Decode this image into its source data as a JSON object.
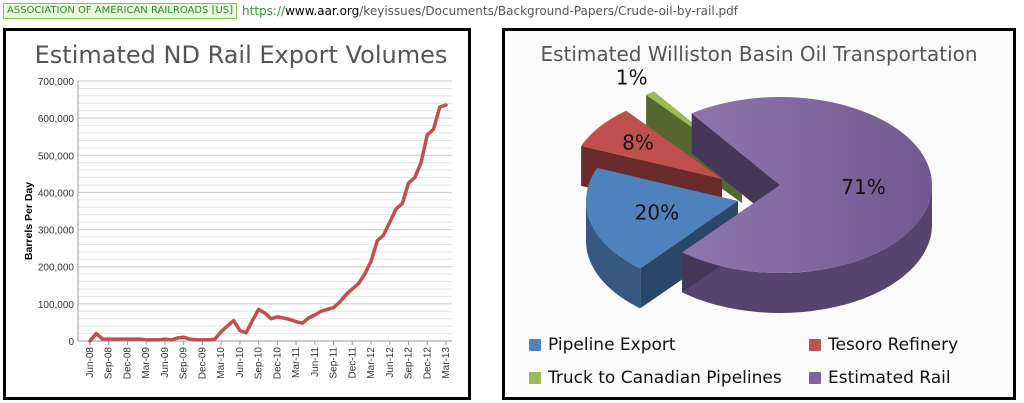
{
  "address_bar": {
    "site_badge": "ASSOCIATION OF AMERICAN RAILROADS [US]",
    "url_scheme": "https://",
    "url_host": "www.aar.org",
    "url_path": "/keyissues/Documents/Background-Papers/Crude-oil-by-rail.pdf",
    "secure_color": "#2a9d2a"
  },
  "chart_data": [
    {
      "type": "line",
      "title": "Estimated ND Rail Export Volumes",
      "xlabel": "",
      "ylabel": "Barrels Per Day",
      "ylim": [
        0,
        700000
      ],
      "yticks": [
        0,
        100000,
        200000,
        300000,
        400000,
        500000,
        600000,
        700000
      ],
      "ytick_labels": [
        "0",
        "100,000",
        "200,000",
        "300,000",
        "400,000",
        "500,000",
        "600,000",
        "700,000"
      ],
      "xtick_labels": [
        "Jun-08",
        "Sep-08",
        "Dec-08",
        "Mar-09",
        "Jun-09",
        "Sep-09",
        "Dec-09",
        "Mar-10",
        "Jun-10",
        "Sep-10",
        "Dec-10",
        "Mar-11",
        "Jun-11",
        "Sep-11",
        "Dec-11",
        "Mar-12",
        "Jun-12",
        "Sep-12",
        "Dec-12",
        "Mar-13"
      ],
      "grid": true,
      "line_color": "#c0504d",
      "x": [
        "Jun-08",
        "Jul-08",
        "Aug-08",
        "Sep-08",
        "Oct-08",
        "Nov-08",
        "Dec-08",
        "Jan-09",
        "Feb-09",
        "Mar-09",
        "Apr-09",
        "May-09",
        "Jun-09",
        "Jul-09",
        "Aug-09",
        "Sep-09",
        "Oct-09",
        "Nov-09",
        "Dec-09",
        "Jan-10",
        "Feb-10",
        "Mar-10",
        "Apr-10",
        "May-10",
        "Jun-10",
        "Jul-10",
        "Aug-10",
        "Sep-10",
        "Oct-10",
        "Nov-10",
        "Dec-10",
        "Jan-11",
        "Feb-11",
        "Mar-11",
        "Apr-11",
        "May-11",
        "Jun-11",
        "Jul-11",
        "Aug-11",
        "Sep-11",
        "Oct-11",
        "Nov-11",
        "Dec-11",
        "Jan-12",
        "Feb-12",
        "Mar-12",
        "Apr-12",
        "May-12",
        "Jun-12",
        "Jul-12",
        "Aug-12",
        "Sep-12",
        "Oct-12",
        "Nov-12",
        "Dec-12",
        "Jan-13",
        "Feb-13",
        "Mar-13"
      ],
      "values": [
        0,
        20000,
        5000,
        5000,
        5000,
        5000,
        5000,
        5000,
        5000,
        3000,
        3000,
        3000,
        5000,
        3000,
        8000,
        10000,
        5000,
        3000,
        3000,
        3000,
        5000,
        25000,
        40000,
        55000,
        28000,
        22000,
        55000,
        85000,
        75000,
        60000,
        65000,
        62000,
        58000,
        52000,
        48000,
        62000,
        70000,
        80000,
        85000,
        90000,
        105000,
        125000,
        140000,
        155000,
        180000,
        215000,
        270000,
        285000,
        320000,
        355000,
        370000,
        425000,
        440000,
        480000,
        555000,
        570000,
        630000,
        635000
      ]
    },
    {
      "type": "pie",
      "title": "Estimated Williston Basin Oil Transportation",
      "slices": [
        {
          "label": "Estimated Rail",
          "value": 71,
          "display": "71%",
          "color": "#8064a2"
        },
        {
          "label": "Pipeline Export",
          "value": 20,
          "display": "20%",
          "color": "#4f81bd"
        },
        {
          "label": "Tesoro Refinery",
          "value": 8,
          "display": "8%",
          "color": "#c0504d"
        },
        {
          "label": "Truck to Canadian Pipelines",
          "value": 1,
          "display": "1%",
          "color": "#9bbb59"
        }
      ],
      "legend": [
        {
          "label": "Pipeline Export",
          "color": "#4f81bd"
        },
        {
          "label": "Tesoro Refinery",
          "color": "#c0504d"
        },
        {
          "label": "Truck to Canadian Pipelines",
          "color": "#9bbb59"
        },
        {
          "label": "Estimated Rail",
          "color": "#8064a2"
        }
      ],
      "legend_position": "bottom"
    }
  ]
}
